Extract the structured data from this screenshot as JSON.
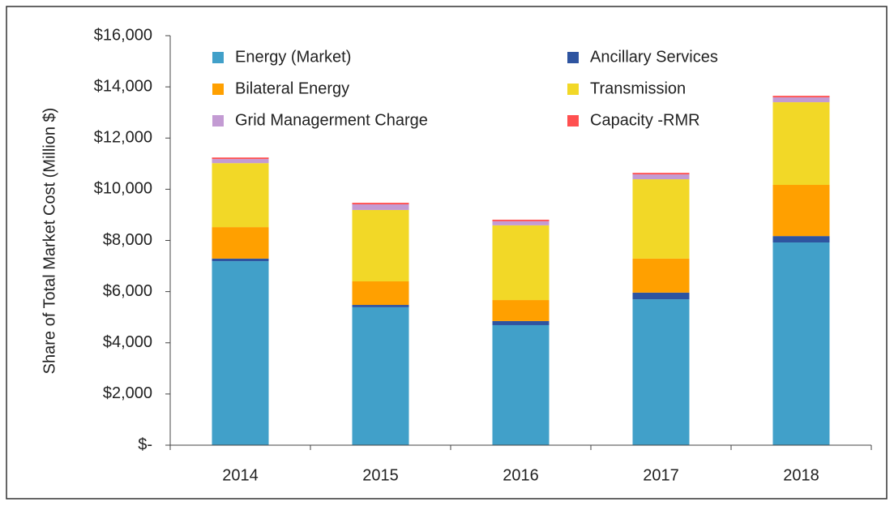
{
  "chart_data": {
    "type": "stacked_bar",
    "y_label": "Share of Total Market Cost (Million $)",
    "categories": [
      "2014",
      "2015",
      "2016",
      "2017",
      "2018"
    ],
    "series": [
      {
        "name": "Energy (Market)",
        "color": "#41a0c9",
        "values": [
          7190,
          5390,
          4690,
          5700,
          7920
        ]
      },
      {
        "name": "Ancillary Services",
        "color": "#2e54a0",
        "values": [
          100,
          90,
          160,
          260,
          250
        ]
      },
      {
        "name": "Bilateral Energy",
        "color": "#ffa000",
        "values": [
          1230,
          920,
          820,
          1330,
          2000
        ]
      },
      {
        "name": "Transmission",
        "color": "#f2d827",
        "values": [
          2500,
          2790,
          2920,
          3100,
          3230
        ]
      },
      {
        "name": "Grid Managerment Charge",
        "color": "#c39bd3",
        "values": [
          160,
          220,
          160,
          190,
          190
        ]
      },
      {
        "name": "Capacity -RMR",
        "color": "#ff5050",
        "values": [
          60,
          60,
          60,
          60,
          60
        ]
      }
    ],
    "ylim": [
      0,
      16000
    ],
    "yticks": [
      {
        "value": 0,
        "label": "$-"
      },
      {
        "value": 2000,
        "label": "$2,000"
      },
      {
        "value": 4000,
        "label": "$4,000"
      },
      {
        "value": 6000,
        "label": "$6,000"
      },
      {
        "value": 8000,
        "label": "$8,000"
      },
      {
        "value": 10000,
        "label": "$10,000"
      },
      {
        "value": 12000,
        "label": "$12,000"
      },
      {
        "value": 14000,
        "label": "$14,000"
      },
      {
        "value": 16000,
        "label": "$16,000"
      }
    ]
  }
}
